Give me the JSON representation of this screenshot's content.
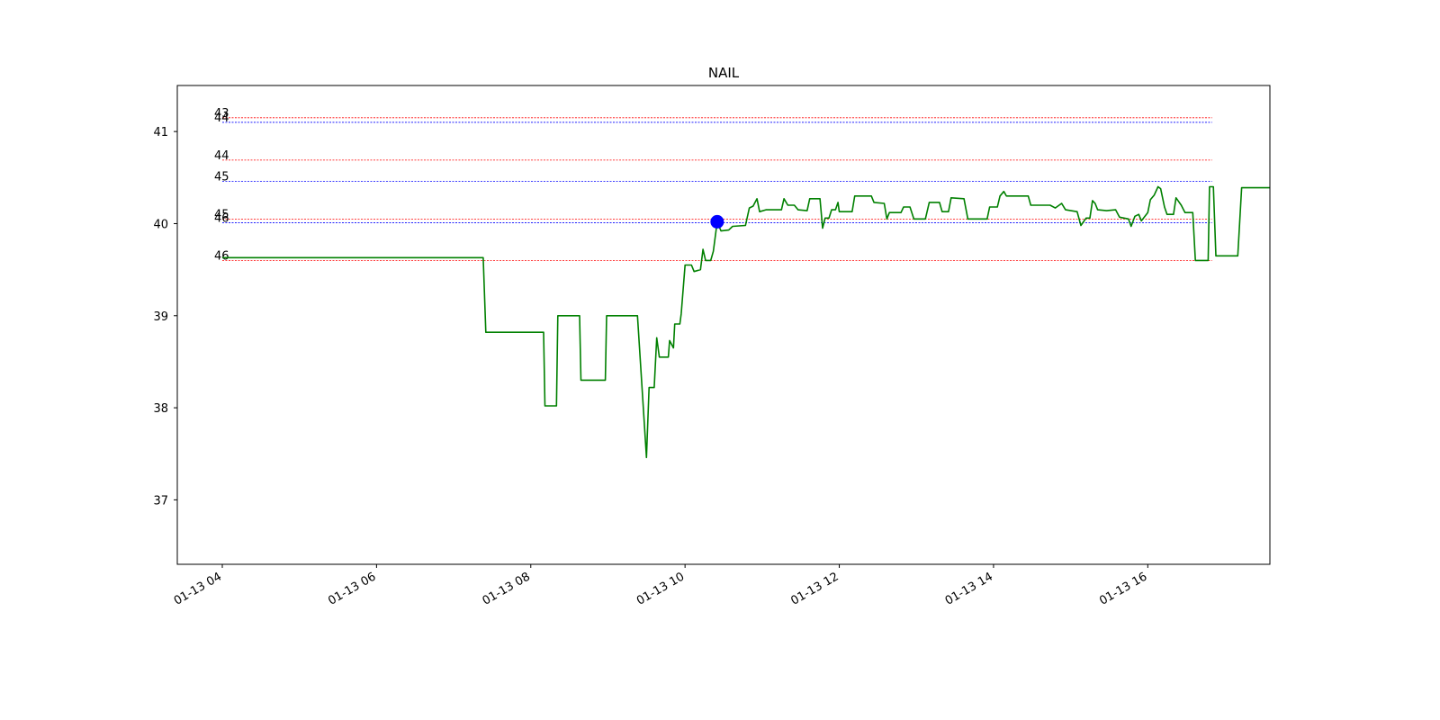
{
  "chart_data": {
    "type": "line",
    "title": "NAIL",
    "xlabel": "",
    "ylabel": "",
    "x_range_hours": [
      "01-13 03:25",
      "01-13 17:35"
    ],
    "ylim": [
      36.3,
      41.5
    ],
    "x_ticks": [
      {
        "label": "01-13 04",
        "t": "04:00"
      },
      {
        "label": "01-13 06",
        "t": "06:00"
      },
      {
        "label": "01-13 08",
        "t": "08:00"
      },
      {
        "label": "01-13 10",
        "t": "10:00"
      },
      {
        "label": "01-13 12",
        "t": "12:00"
      },
      {
        "label": "01-13 14",
        "t": "14:00"
      },
      {
        "label": "01-13 16",
        "t": "16:00"
      }
    ],
    "y_ticks": [
      {
        "label": "37",
        "v": 37
      },
      {
        "label": "38",
        "v": 38
      },
      {
        "label": "39",
        "v": 39
      },
      {
        "label": "40",
        "v": 40
      },
      {
        "label": "41",
        "v": 41
      }
    ],
    "grid": false,
    "colors": {
      "price": "#008000",
      "red_level": "#ff0000",
      "blue_level": "#0000ff",
      "marker": "#0000ff"
    },
    "levels": [
      {
        "label": "43",
        "value": 41.15,
        "color": "red"
      },
      {
        "label": "44",
        "value": 41.1,
        "color": "blue"
      },
      {
        "label": "44",
        "value": 40.69,
        "color": "red"
      },
      {
        "label": "45",
        "value": 40.46,
        "color": "blue"
      },
      {
        "label": "45",
        "value": 40.05,
        "color": "red"
      },
      {
        "label": "46",
        "value": 40.01,
        "color": "blue"
      },
      {
        "label": "46",
        "value": 39.6,
        "color": "red"
      }
    ],
    "levels_x_range": [
      "04:00",
      "16:50"
    ],
    "marker": {
      "t": "10:25",
      "v": 40.02
    },
    "series": [
      {
        "points": [
          [
            "04:00",
            39.63
          ],
          [
            "07:23",
            39.63
          ],
          [
            "07:25",
            38.82
          ],
          [
            "08:10",
            38.82
          ],
          [
            "08:11",
            38.02
          ],
          [
            "08:20",
            38.02
          ],
          [
            "08:21",
            39.0
          ],
          [
            "08:38",
            39.0
          ],
          [
            "08:39",
            38.3
          ],
          [
            "08:58",
            38.3
          ],
          [
            "08:59",
            39.0
          ],
          [
            "09:23",
            39.0
          ],
          [
            "09:30",
            37.46
          ],
          [
            "09:32",
            38.22
          ],
          [
            "09:36",
            38.22
          ],
          [
            "09:38",
            38.76
          ],
          [
            "09:40",
            38.55
          ],
          [
            "09:47",
            38.55
          ],
          [
            "09:48",
            38.73
          ],
          [
            "09:51",
            38.65
          ],
          [
            "09:52",
            38.91
          ],
          [
            "09:56",
            38.91
          ],
          [
            "09:57",
            39.02
          ],
          [
            "10:00",
            39.55
          ],
          [
            "10:05",
            39.55
          ],
          [
            "10:07",
            39.48
          ],
          [
            "10:12",
            39.5
          ],
          [
            "10:14",
            39.72
          ],
          [
            "10:16",
            39.6
          ],
          [
            "10:20",
            39.6
          ],
          [
            "10:22",
            39.7
          ],
          [
            "10:25",
            40.02
          ],
          [
            "10:28",
            39.92
          ],
          [
            "10:34",
            39.93
          ],
          [
            "10:37",
            39.97
          ],
          [
            "10:47",
            39.98
          ],
          [
            "10:50",
            40.17
          ],
          [
            "10:53",
            40.19
          ],
          [
            "10:56",
            40.27
          ],
          [
            "10:58",
            40.13
          ],
          [
            "11:03",
            40.15
          ],
          [
            "11:15",
            40.15
          ],
          [
            "11:17",
            40.27
          ],
          [
            "11:20",
            40.2
          ],
          [
            "11:25",
            40.2
          ],
          [
            "11:28",
            40.15
          ],
          [
            "11:35",
            40.14
          ],
          [
            "11:37",
            40.27
          ],
          [
            "11:45",
            40.27
          ],
          [
            "11:47",
            39.95
          ],
          [
            "11:49",
            40.06
          ],
          [
            "11:52",
            40.06
          ],
          [
            "11:54",
            40.15
          ],
          [
            "11:57",
            40.15
          ],
          [
            "11:59",
            40.23
          ],
          [
            "12:00",
            40.13
          ],
          [
            "12:10",
            40.13
          ],
          [
            "12:12",
            40.3
          ],
          [
            "12:25",
            40.3
          ],
          [
            "12:27",
            40.23
          ],
          [
            "12:35",
            40.22
          ],
          [
            "12:37",
            40.05
          ],
          [
            "12:39",
            40.12
          ],
          [
            "12:48",
            40.12
          ],
          [
            "12:50",
            40.18
          ],
          [
            "12:55",
            40.18
          ],
          [
            "12:58",
            40.05
          ],
          [
            "13:07",
            40.05
          ],
          [
            "13:10",
            40.23
          ],
          [
            "13:18",
            40.23
          ],
          [
            "13:20",
            40.13
          ],
          [
            "13:25",
            40.13
          ],
          [
            "13:27",
            40.28
          ],
          [
            "13:37",
            40.27
          ],
          [
            "13:40",
            40.05
          ],
          [
            "13:55",
            40.05
          ],
          [
            "13:57",
            40.18
          ],
          [
            "14:03",
            40.18
          ],
          [
            "14:05",
            40.3
          ],
          [
            "14:08",
            40.35
          ],
          [
            "14:10",
            40.3
          ],
          [
            "14:27",
            40.3
          ],
          [
            "14:29",
            40.2
          ],
          [
            "14:44",
            40.2
          ],
          [
            "14:48",
            40.17
          ],
          [
            "14:53",
            40.22
          ],
          [
            "14:56",
            40.15
          ],
          [
            "15:05",
            40.13
          ],
          [
            "15:08",
            39.98
          ],
          [
            "15:12",
            40.06
          ],
          [
            "15:15",
            40.06
          ],
          [
            "15:17",
            40.25
          ],
          [
            "15:19",
            40.22
          ],
          [
            "15:21",
            40.15
          ],
          [
            "15:28",
            40.14
          ],
          [
            "15:35",
            40.15
          ],
          [
            "15:38",
            40.07
          ],
          [
            "15:45",
            40.05
          ],
          [
            "15:47",
            39.97
          ],
          [
            "15:50",
            40.08
          ],
          [
            "15:53",
            40.1
          ],
          [
            "15:55",
            40.03
          ],
          [
            "16:00",
            40.12
          ],
          [
            "16:02",
            40.26
          ],
          [
            "16:05",
            40.31
          ],
          [
            "16:08",
            40.4
          ],
          [
            "16:10",
            40.38
          ],
          [
            "16:13",
            40.18
          ],
          [
            "16:15",
            40.1
          ],
          [
            "16:20",
            40.1
          ],
          [
            "16:22",
            40.28
          ],
          [
            "16:26",
            40.2
          ],
          [
            "16:29",
            40.12
          ],
          [
            "16:35",
            40.12
          ],
          [
            "16:37",
            39.6
          ],
          [
            "16:47",
            39.6
          ],
          [
            "16:48",
            40.4
          ],
          [
            "16:51",
            40.4
          ],
          [
            "16:53",
            39.65
          ],
          [
            "17:10",
            39.65
          ],
          [
            "17:13",
            40.39
          ],
          [
            "17:35",
            40.39
          ]
        ]
      }
    ]
  }
}
